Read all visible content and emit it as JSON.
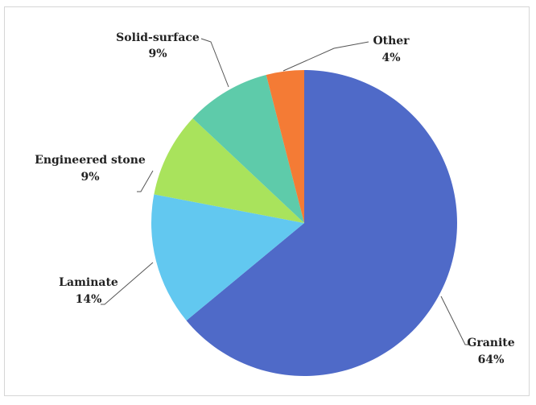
{
  "chart_data": {
    "type": "pie",
    "title": "",
    "slices": [
      {
        "label": "Granite",
        "value": 64,
        "value_label": "64%",
        "color": "#4F6AC8"
      },
      {
        "label": "Laminate",
        "value": 14,
        "value_label": "14%",
        "color": "#62C8F0"
      },
      {
        "label": "Engineered stone",
        "value": 9,
        "value_label": "9%",
        "color": "#A9E35C"
      },
      {
        "label": "Solid-surface",
        "value": 9,
        "value_label": "9%",
        "color": "#5ECBAA"
      },
      {
        "label": "Other",
        "value": 4,
        "value_label": "4%",
        "color": "#F47B35"
      }
    ],
    "start_angle_deg": 0,
    "direction": "clockwise",
    "legend": "none"
  }
}
